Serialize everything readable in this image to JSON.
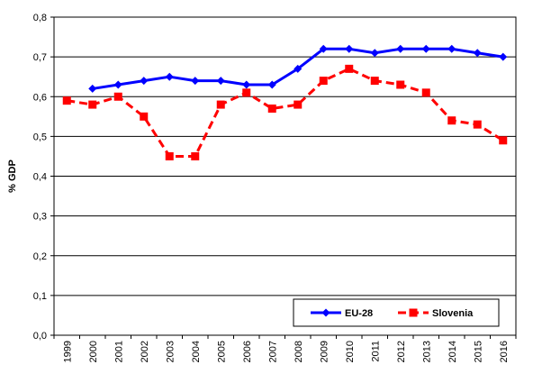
{
  "chart_data": {
    "type": "line",
    "x": [
      "1999",
      "2000",
      "2001",
      "2002",
      "2003",
      "2004",
      "2005",
      "2006",
      "2007",
      "2008",
      "2009",
      "2010",
      "2011",
      "2012",
      "2013",
      "2014",
      "2015",
      "2016"
    ],
    "ylabel": "% GDP",
    "ylim": [
      0,
      0.8
    ],
    "yticks": [
      "0,0",
      "0,1",
      "0,2",
      "0,3",
      "0,4",
      "0,5",
      "0,6",
      "0,7",
      "0,8"
    ],
    "grid": true,
    "legend_position": "bottom-right",
    "series": [
      {
        "name": "EU-28",
        "color": "#0000ff",
        "marker": "diamond",
        "dashed": false,
        "values": [
          null,
          0.62,
          0.63,
          0.64,
          0.65,
          0.64,
          0.64,
          0.63,
          0.63,
          0.67,
          0.72,
          0.72,
          0.71,
          0.72,
          0.72,
          0.72,
          0.71,
          0.7
        ]
      },
      {
        "name": "Slovenia",
        "color": "#ff0000",
        "marker": "square",
        "dashed": true,
        "values": [
          0.59,
          0.58,
          0.6,
          0.55,
          0.45,
          0.45,
          0.58,
          0.61,
          0.57,
          0.58,
          0.64,
          0.67,
          0.64,
          0.63,
          0.61,
          0.54,
          0.53,
          0.49
        ]
      }
    ]
  }
}
